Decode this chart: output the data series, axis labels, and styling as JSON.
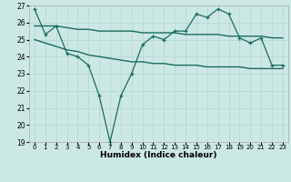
{
  "xlabel": "Humidex (Indice chaleur)",
  "x": [
    0,
    1,
    2,
    3,
    4,
    5,
    6,
    7,
    8,
    9,
    10,
    11,
    12,
    13,
    14,
    15,
    16,
    17,
    18,
    19,
    20,
    21,
    22,
    23
  ],
  "line_main": [
    26.8,
    25.3,
    25.8,
    24.2,
    24.0,
    23.5,
    21.7,
    19.0,
    21.7,
    23.0,
    24.7,
    25.2,
    25.0,
    25.5,
    25.5,
    26.5,
    26.3,
    26.8,
    26.5,
    25.1,
    24.8,
    25.1,
    23.5,
    23.5
  ],
  "line_upper": [
    25.8,
    25.8,
    25.8,
    25.7,
    25.6,
    25.6,
    25.5,
    25.5,
    25.5,
    25.5,
    25.4,
    25.4,
    25.4,
    25.4,
    25.3,
    25.3,
    25.3,
    25.3,
    25.2,
    25.2,
    25.2,
    25.2,
    25.1,
    25.1
  ],
  "line_lower": [
    25.0,
    24.8,
    24.6,
    24.4,
    24.3,
    24.1,
    24.0,
    23.9,
    23.8,
    23.7,
    23.7,
    23.6,
    23.6,
    23.5,
    23.5,
    23.5,
    23.4,
    23.4,
    23.4,
    23.4,
    23.3,
    23.3,
    23.3,
    23.3
  ],
  "ylim": [
    19,
    27
  ],
  "yticks": [
    19,
    20,
    21,
    22,
    23,
    24,
    25,
    26,
    27
  ],
  "bg_color": "#cce8e5",
  "grid_color": "#b8d8d5",
  "line_color": "#1a6b5e"
}
